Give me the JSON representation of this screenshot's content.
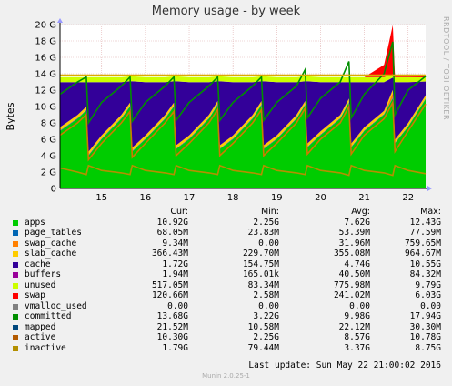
{
  "header": {
    "title": "Memory usage - by week",
    "watermark": "RRDTOOL / TOBI OETIKER"
  },
  "chart_data": {
    "type": "area",
    "ylabel": "Bytes",
    "ylim": [
      0,
      20
    ],
    "yticks": [
      "0",
      "2 G",
      "4 G",
      "6 G",
      "8 G",
      "10 G",
      "12 G",
      "14 G",
      "16 G",
      "18 G",
      "20 G"
    ],
    "xticks": [
      "15",
      "16",
      "17",
      "18",
      "19",
      "20",
      "21",
      "22"
    ],
    "xlim": [
      14.05,
      22.4
    ],
    "grid": true,
    "stack_order": [
      "apps",
      "page_tables",
      "swap_cache",
      "slab_cache",
      "cache",
      "buffers",
      "unused",
      "swap"
    ],
    "x": [
      14.05,
      14.45,
      14.65,
      14.7,
      15.0,
      15.45,
      15.65,
      15.7,
      16.0,
      16.45,
      16.65,
      16.7,
      17.0,
      17.45,
      17.65,
      17.7,
      18.0,
      18.45,
      18.65,
      18.7,
      19.0,
      19.45,
      19.65,
      19.7,
      20.0,
      20.45,
      20.65,
      20.7,
      21.0,
      21.45,
      21.65,
      21.7,
      22.0,
      22.4
    ],
    "series": [
      {
        "name": "apps",
        "color": "#00cc00",
        "values": [
          7.0,
          8.5,
          9.5,
          4.0,
          6.0,
          8.5,
          10.0,
          4.5,
          6.0,
          8.5,
          10.0,
          4.8,
          6.0,
          8.5,
          10.2,
          4.8,
          6.0,
          8.5,
          10.2,
          4.8,
          6.0,
          8.5,
          10.2,
          5.0,
          6.5,
          8.5,
          10.5,
          5.0,
          7.0,
          9.0,
          11.0,
          5.5,
          7.5,
          10.9
        ]
      },
      {
        "name": "page_tables",
        "color": "#0066b3",
        "values": [
          0.07,
          0.07,
          0.07,
          0.07,
          0.07,
          0.07,
          0.07,
          0.07,
          0.07,
          0.07,
          0.07,
          0.07,
          0.07,
          0.07,
          0.07,
          0.07,
          0.07,
          0.07,
          0.07,
          0.07,
          0.07,
          0.07,
          0.07,
          0.07,
          0.07,
          0.07,
          0.07,
          0.07,
          0.07,
          0.07,
          0.07,
          0.07,
          0.07,
          0.07
        ]
      },
      {
        "name": "swap_cache",
        "color": "#ff8000",
        "values": [
          0.05,
          0.05,
          0.05,
          0.05,
          0.05,
          0.05,
          0.05,
          0.05,
          0.05,
          0.05,
          0.05,
          0.05,
          0.05,
          0.05,
          0.05,
          0.05,
          0.05,
          0.05,
          0.05,
          0.05,
          0.05,
          0.05,
          0.05,
          0.05,
          0.05,
          0.05,
          0.05,
          0.05,
          0.05,
          0.05,
          0.6,
          0.05,
          0.05,
          0.01
        ]
      },
      {
        "name": "slab_cache",
        "color": "#ffcc00",
        "values": [
          0.35,
          0.35,
          0.35,
          0.35,
          0.35,
          0.35,
          0.35,
          0.35,
          0.35,
          0.35,
          0.35,
          0.35,
          0.35,
          0.35,
          0.35,
          0.35,
          0.35,
          0.35,
          0.35,
          0.35,
          0.35,
          0.35,
          0.35,
          0.35,
          0.35,
          0.35,
          0.35,
          0.35,
          0.35,
          0.35,
          0.35,
          0.35,
          0.35,
          0.37
        ]
      },
      {
        "name": "cache",
        "color": "#330099",
        "values": [
          5.5,
          4.0,
          3.0,
          8.5,
          6.5,
          4.0,
          2.6,
          8.1,
          6.5,
          4.0,
          2.6,
          7.8,
          6.5,
          4.0,
          2.4,
          7.8,
          6.5,
          4.0,
          2.4,
          7.8,
          6.5,
          4.0,
          2.4,
          7.6,
          6.0,
          4.0,
          2.0,
          7.5,
          5.5,
          3.5,
          1.5,
          7.0,
          5.0,
          1.7
        ]
      },
      {
        "name": "buffers",
        "color": "#990099",
        "values": [
          0.01,
          0.01,
          0.01,
          0.01,
          0.01,
          0.01,
          0.01,
          0.01,
          0.01,
          0.01,
          0.01,
          0.01,
          0.01,
          0.01,
          0.01,
          0.01,
          0.01,
          0.01,
          0.01,
          0.01,
          0.01,
          0.01,
          0.01,
          0.01,
          0.01,
          0.01,
          0.01,
          0.01,
          0.01,
          0.01,
          0.01,
          0.01,
          0.01,
          0.01
        ]
      },
      {
        "name": "unused",
        "color": "#ccff00",
        "values": [
          0.6,
          0.6,
          0.6,
          0.6,
          0.6,
          0.6,
          0.6,
          0.6,
          0.6,
          0.6,
          0.6,
          0.6,
          0.6,
          0.6,
          0.6,
          0.6,
          0.6,
          0.6,
          0.6,
          0.6,
          0.6,
          0.6,
          0.6,
          0.6,
          0.6,
          0.6,
          0.6,
          0.6,
          0.6,
          0.6,
          0.4,
          0.6,
          0.6,
          0.5
        ]
      },
      {
        "name": "swap",
        "color": "#ff0000",
        "values": [
          0,
          0,
          0,
          0,
          0,
          0,
          0,
          0,
          0,
          0,
          0,
          0,
          0,
          0,
          0,
          0,
          0,
          0,
          0,
          0,
          0,
          0,
          0,
          0,
          0,
          0,
          0,
          0,
          0,
          1.5,
          6.0,
          0.1,
          0.1,
          0.12
        ]
      }
    ],
    "lines": [
      {
        "name": "committed",
        "color": "#008f00",
        "values": [
          11.5,
          13.0,
          13.6,
          8.0,
          10.5,
          12.5,
          13.6,
          8.2,
          10.5,
          12.5,
          13.6,
          8.3,
          10.5,
          12.5,
          13.6,
          8.3,
          10.5,
          12.5,
          13.6,
          8.3,
          10.5,
          12.5,
          14.5,
          8.6,
          11.0,
          13.0,
          15.5,
          8.6,
          11.5,
          14.0,
          17.9,
          9.0,
          12.0,
          13.7
        ]
      },
      {
        "name": "inactive",
        "color": "#b38f00",
        "values": [
          2.5,
          2.0,
          1.7,
          2.8,
          2.2,
          1.9,
          1.7,
          2.8,
          2.2,
          1.9,
          1.7,
          2.8,
          2.2,
          1.9,
          1.7,
          2.8,
          2.2,
          1.9,
          1.7,
          2.8,
          2.2,
          1.9,
          1.7,
          2.8,
          2.2,
          1.9,
          1.6,
          2.8,
          2.2,
          1.9,
          1.6,
          2.8,
          2.2,
          1.8
        ]
      },
      {
        "name": "active",
        "color": "#cc7a00",
        "values": [
          6.5,
          8.0,
          9.0,
          3.5,
          5.5,
          8.0,
          9.4,
          3.8,
          5.5,
          8.0,
          9.4,
          4.0,
          5.5,
          8.0,
          9.6,
          4.0,
          5.5,
          8.0,
          9.6,
          4.0,
          5.5,
          8.0,
          9.8,
          4.2,
          6.0,
          8.0,
          10.0,
          4.2,
          6.5,
          8.5,
          10.5,
          4.5,
          7.0,
          10.3
        ]
      }
    ],
    "max_line": {
      "value": 13.85,
      "color": "#ddaa00"
    },
    "legend_headers": [
      "Cur:",
      "Min:",
      "Avg:",
      "Max:"
    ],
    "legend": [
      {
        "name": "apps",
        "color": "#00cc00",
        "cur": "10.92G",
        "min": "2.25G",
        "avg": "7.62G",
        "max": "12.43G"
      },
      {
        "name": "page_tables",
        "color": "#0066b3",
        "cur": "68.05M",
        "min": "23.83M",
        "avg": "53.39M",
        "max": "77.59M"
      },
      {
        "name": "swap_cache",
        "color": "#ff8000",
        "cur": "9.34M",
        "min": "0.00",
        "avg": "31.96M",
        "max": "759.65M"
      },
      {
        "name": "slab_cache",
        "color": "#ffcc00",
        "cur": "366.43M",
        "min": "229.70M",
        "avg": "355.08M",
        "max": "964.67M"
      },
      {
        "name": "cache",
        "color": "#330099",
        "cur": "1.72G",
        "min": "154.75M",
        "avg": "4.74G",
        "max": "10.55G"
      },
      {
        "name": "buffers",
        "color": "#990099",
        "cur": "1.94M",
        "min": "165.01k",
        "avg": "40.50M",
        "max": "84.32M"
      },
      {
        "name": "unused",
        "color": "#ccff00",
        "cur": "517.05M",
        "min": "83.34M",
        "avg": "775.98M",
        "max": "9.79G"
      },
      {
        "name": "swap",
        "color": "#ff0000",
        "cur": "120.66M",
        "min": "2.58M",
        "avg": "241.02M",
        "max": "6.03G"
      },
      {
        "name": "vmalloc_used",
        "color": "#808080",
        "cur": "0.00",
        "min": "0.00",
        "avg": "0.00",
        "max": "0.00"
      },
      {
        "name": "committed",
        "color": "#008f00",
        "cur": "13.68G",
        "min": "3.22G",
        "avg": "9.98G",
        "max": "17.94G"
      },
      {
        "name": "mapped",
        "color": "#00487d",
        "cur": "21.52M",
        "min": "10.58M",
        "avg": "22.12M",
        "max": "30.30M"
      },
      {
        "name": "active",
        "color": "#b35a00",
        "cur": "10.30G",
        "min": "2.25G",
        "avg": "8.57G",
        "max": "10.78G"
      },
      {
        "name": "inactive",
        "color": "#b38f00",
        "cur": "1.79G",
        "min": "79.44M",
        "avg": "3.37G",
        "max": "8.75G"
      }
    ]
  },
  "footer": {
    "last_update": "Last update:  Sun May 22 21:00:02 2016",
    "version": "Munin 2.0.25-1"
  }
}
